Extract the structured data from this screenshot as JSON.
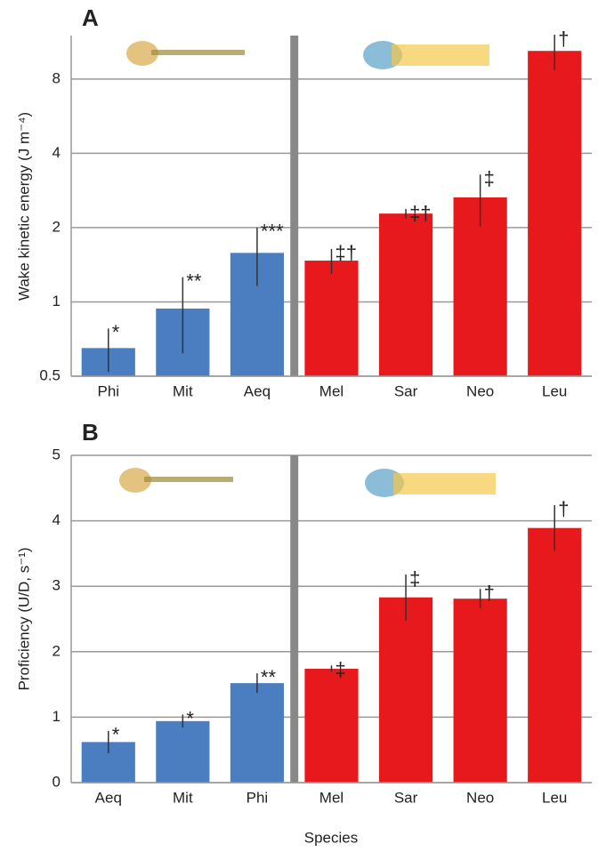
{
  "chart_data": [
    {
      "type": "bar",
      "panel": "A",
      "ylabel": "Wake kinetic energy (J m⁻⁴)",
      "log_scale": true,
      "grid": true,
      "categories": [
        "Phi",
        "Mit",
        "Aeq",
        "Mel",
        "Sar",
        "Neo",
        "Leu"
      ],
      "values": [
        0.65,
        0.94,
        1.58,
        1.47,
        2.28,
        2.65,
        10.4
      ],
      "errors": [
        0.13,
        0.32,
        0.42,
        0.17,
        0.1,
        0.63,
        1.7
      ],
      "markers": [
        "*",
        "**",
        "***",
        "‡†",
        "‡†",
        "‡",
        "†"
      ],
      "colors": [
        "#4a7ec0",
        "#4a7ec0",
        "#4a7ec0",
        "#e8191c",
        "#e8191c",
        "#e8191c",
        "#e8191c"
      ],
      "ylim": [
        0.5,
        12
      ],
      "yticks": [
        0.5,
        1,
        2,
        4,
        8
      ]
    },
    {
      "type": "bar",
      "panel": "B",
      "ylabel": "Proficiency (U/D, s⁻¹)",
      "xlabel": "Species",
      "log_scale": false,
      "grid": true,
      "categories": [
        "Aeq",
        "Mit",
        "Phi",
        "Mel",
        "Sar",
        "Neo",
        "Leu"
      ],
      "values": [
        0.62,
        0.94,
        1.52,
        1.74,
        2.83,
        2.81,
        3.89
      ],
      "errors": [
        0.17,
        0.1,
        0.15,
        0.05,
        0.35,
        0.15,
        0.35
      ],
      "markers": [
        "*",
        "*",
        "**",
        "‡",
        "‡",
        "†",
        "†"
      ],
      "colors": [
        "#4a7ec0",
        "#4a7ec0",
        "#4a7ec0",
        "#e8191c",
        "#e8191c",
        "#e8191c",
        "#e8191c"
      ],
      "ylim": [
        0,
        5
      ],
      "yticks": [
        0,
        1,
        2,
        3,
        4,
        5
      ]
    }
  ]
}
